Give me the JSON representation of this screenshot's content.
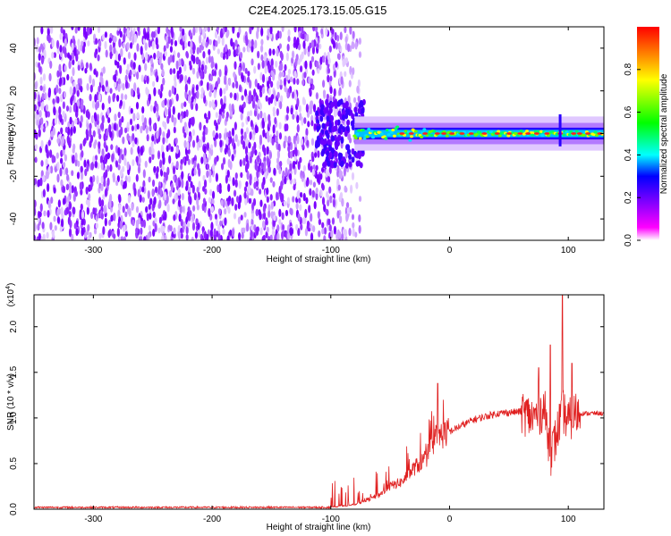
{
  "title": "C2E4.2025.173.15.05.G15",
  "chart_data": [
    {
      "type": "heatmap",
      "ylabel": "Frequency (Hz)",
      "xlabel": "Height of straight line (km)",
      "xlim": [
        -350,
        130
      ],
      "ylim": [
        -50,
        50
      ],
      "xticks": [
        "-300",
        "-200",
        "-100",
        "0",
        "100"
      ],
      "yticks": [
        "-40",
        "-20",
        "0",
        "20",
        "40"
      ],
      "colorbar": {
        "label": "Normalized spectral amplitude",
        "range": [
          0,
          1
        ],
        "ticks": [
          "0.0",
          "0.2",
          "0.4",
          "0.6",
          "0.8"
        ],
        "colors": [
          "#ffffff",
          "#ff00ff",
          "#0000ff",
          "#00ffff",
          "#00ff00",
          "#ffff00",
          "#ff0000"
        ]
      },
      "description_values": {
        "noise_region_x": [
          -350,
          -85
        ],
        "noise_region_frequency_range": [
          -50,
          50
        ],
        "signal_region_x": [
          -85,
          130
        ],
        "signal_center_frequency": 0,
        "signal_band_halfwidth": 5
      }
    },
    {
      "type": "line",
      "ylabel": "SNR (10 * v/v)",
      "xlabel": "Height of straight line (km)",
      "multiplier": "(x10^4)",
      "multiplier_base": "(x10",
      "multiplier_exp": "4",
      "multiplier_close": ")",
      "xlim": [
        -350,
        130
      ],
      "ylim": [
        0,
        2.35
      ],
      "xticks": [
        "-300",
        "-200",
        "-100",
        "0",
        "100"
      ],
      "yticks": [
        "0.0",
        "0.5",
        "1.0",
        "1.5",
        "2.0"
      ],
      "series_color": "#e02020",
      "x": [
        -350,
        -100,
        -80,
        -60,
        -50,
        -40,
        -30,
        -20,
        -15,
        -10,
        0,
        20,
        40,
        60,
        70,
        80,
        85,
        90,
        95,
        100,
        105,
        130
      ],
      "y": [
        0.02,
        0.02,
        0.05,
        0.15,
        0.25,
        0.3,
        0.45,
        0.55,
        0.7,
        0.8,
        0.85,
        0.98,
        1.05,
        1.07,
        1.0,
        1.1,
        0.6,
        0.8,
        1.1,
        0.95,
        1.05,
        1.05
      ],
      "peaks": [
        {
          "x": -10,
          "y": 1.38
        },
        {
          "x": 75,
          "y": 1.55
        },
        {
          "x": 85,
          "y": 1.8
        },
        {
          "x": 95,
          "y": 2.35
        },
        {
          "x": 103,
          "y": 1.6
        }
      ]
    }
  ]
}
